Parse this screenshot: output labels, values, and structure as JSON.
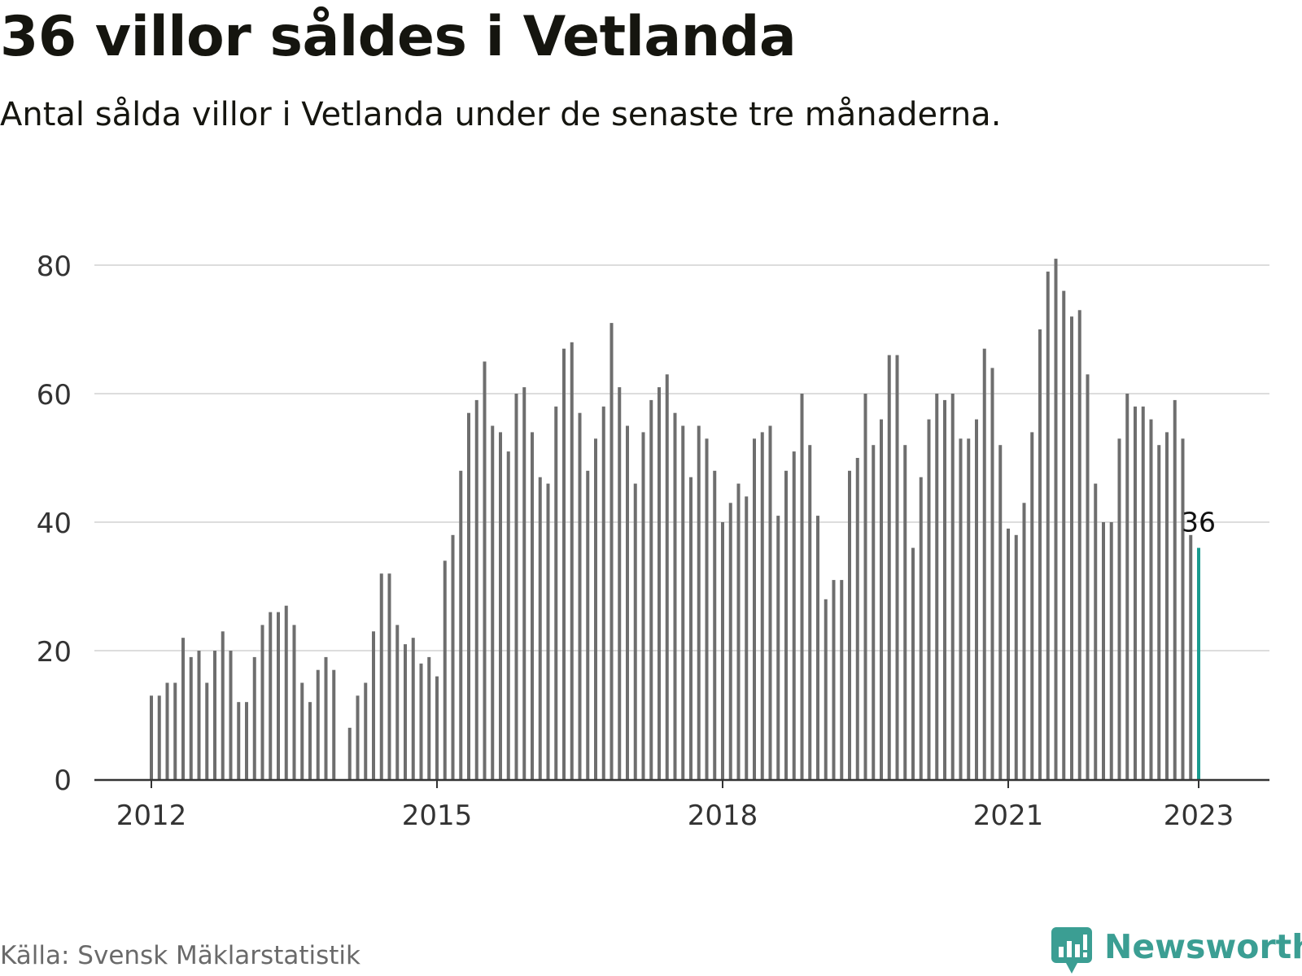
{
  "title": "36 villor såldes i Vetlanda",
  "subtitle": "Antal sålda villor i Vetlanda under de senaste tre månaderna.",
  "source": "Källa: Svensk Mäklarstatistik",
  "brand": "Newsworthy",
  "colors": {
    "bar": "#6e6e6e",
    "highlight": "#1a9c90",
    "grid": "#dddddd",
    "axis": "#333333",
    "brand": "#3b9e93"
  },
  "chart_data": {
    "type": "bar",
    "title": "36 villor såldes i Vetlanda",
    "subtitle": "Antal sålda villor i Vetlanda under de senaste tre månaderna.",
    "xlabel": "",
    "ylabel": "",
    "ylim": [
      0,
      80
    ],
    "y_ticks": [
      0,
      20,
      40,
      60,
      80
    ],
    "x_ticks": [
      {
        "label": "2012",
        "date": "2012-01"
      },
      {
        "label": "2015",
        "date": "2015-01"
      },
      {
        "label": "2018",
        "date": "2018-01"
      },
      {
        "label": "2021",
        "date": "2021-01"
      },
      {
        "label": "2023",
        "date": "2023-01"
      }
    ],
    "grid": true,
    "highlight_label": "36",
    "categories": [
      "2012-01",
      "2012-02",
      "2012-03",
      "2012-04",
      "2012-05",
      "2012-06",
      "2012-07",
      "2012-08",
      "2012-09",
      "2012-10",
      "2012-11",
      "2012-12",
      "2013-01",
      "2013-02",
      "2013-03",
      "2013-04",
      "2013-05",
      "2013-06",
      "2013-07",
      "2013-08",
      "2013-09",
      "2013-10",
      "2013-11",
      "2013-12",
      "2014-01",
      "2014-02",
      "2014-03",
      "2014-04",
      "2014-05",
      "2014-06",
      "2014-07",
      "2014-08",
      "2014-09",
      "2014-10",
      "2014-11",
      "2014-12",
      "2015-01",
      "2015-02",
      "2015-03",
      "2015-04",
      "2015-05",
      "2015-06",
      "2015-07",
      "2015-08",
      "2015-09",
      "2015-10",
      "2015-11",
      "2015-12",
      "2016-01",
      "2016-02",
      "2016-03",
      "2016-04",
      "2016-05",
      "2016-06",
      "2016-07",
      "2016-08",
      "2016-09",
      "2016-10",
      "2016-11",
      "2016-12",
      "2017-01",
      "2017-02",
      "2017-03",
      "2017-04",
      "2017-05",
      "2017-06",
      "2017-07",
      "2017-08",
      "2017-09",
      "2017-10",
      "2017-11",
      "2017-12",
      "2018-01",
      "2018-02",
      "2018-03",
      "2018-04",
      "2018-05",
      "2018-06",
      "2018-07",
      "2018-08",
      "2018-09",
      "2018-10",
      "2018-11",
      "2018-12",
      "2019-01",
      "2019-02",
      "2019-03",
      "2019-04",
      "2019-05",
      "2019-06",
      "2019-07",
      "2019-08",
      "2019-09",
      "2019-10",
      "2019-11",
      "2019-12",
      "2020-01",
      "2020-02",
      "2020-03",
      "2020-04",
      "2020-05",
      "2020-06",
      "2020-07",
      "2020-08",
      "2020-09",
      "2020-10",
      "2020-11",
      "2020-12",
      "2021-01",
      "2021-02",
      "2021-03",
      "2021-04",
      "2021-05",
      "2021-06",
      "2021-07",
      "2021-08",
      "2021-09",
      "2021-10",
      "2021-11",
      "2021-12",
      "2022-01",
      "2022-02",
      "2022-03",
      "2022-04",
      "2022-05",
      "2022-06",
      "2022-07",
      "2022-08",
      "2022-09",
      "2022-10",
      "2022-11",
      "2022-12",
      "2023-01"
    ],
    "values": [
      13,
      13,
      15,
      15,
      22,
      19,
      20,
      15,
      20,
      23,
      20,
      12,
      12,
      19,
      24,
      26,
      26,
      27,
      24,
      15,
      12,
      17,
      19,
      17,
      null,
      8,
      13,
      15,
      23,
      32,
      32,
      24,
      21,
      22,
      18,
      19,
      16,
      34,
      38,
      48,
      57,
      59,
      65,
      55,
      54,
      51,
      60,
      61,
      54,
      47,
      46,
      58,
      67,
      68,
      57,
      48,
      53,
      58,
      71,
      61,
      55,
      46,
      54,
      59,
      61,
      63,
      57,
      55,
      47,
      55,
      53,
      48,
      40,
      43,
      46,
      44,
      53,
      54,
      55,
      41,
      48,
      51,
      60,
      52,
      41,
      28,
      31,
      31,
      48,
      50,
      60,
      52,
      56,
      66,
      66,
      52,
      36,
      47,
      56,
      60,
      59,
      60,
      53,
      53,
      56,
      67,
      64,
      52,
      39,
      38,
      43,
      54,
      70,
      79,
      81,
      76,
      72,
      73,
      63,
      46,
      40,
      40,
      53,
      60,
      58,
      58,
      56,
      52,
      54,
      59,
      53,
      38,
      36
    ]
  }
}
